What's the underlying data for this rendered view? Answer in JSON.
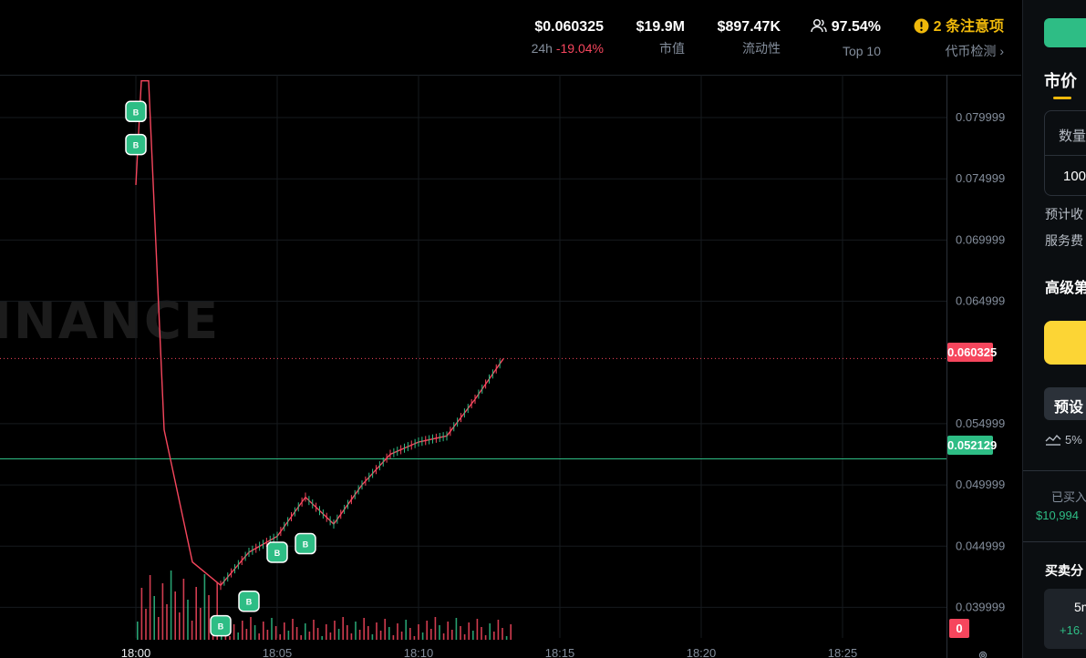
{
  "stats": {
    "price": {
      "value": "$0.060325",
      "prefix": "24h",
      "change": "-19.04%"
    },
    "market_cap": {
      "value": "$19.9M",
      "label": "市值"
    },
    "liquidity": {
      "value": "$897.47K",
      "label": "流动性"
    },
    "holders": {
      "value": "97.54%",
      "label": "Top 10",
      "icon": "users-icon"
    },
    "alerts": {
      "value": "2 条注意项",
      "label": "代币检测 ›",
      "icon": "warning-icon"
    }
  },
  "chart": {
    "watermark": "INANCE",
    "current_price_tag": "0.060325",
    "avg_price_tag": "0.052129",
    "volume_tag": "0",
    "y_ticks": [
      "0.079999",
      "0.074999",
      "0.069999",
      "0.064999",
      "0.054999",
      "0.049999",
      "0.044999",
      "0.039999"
    ],
    "x_ticks": [
      "18:00",
      "18:05",
      "18:10",
      "18:15",
      "18:20",
      "18:25"
    ],
    "buy_marker_label": "B",
    "colors": {
      "up": "#2ebd85",
      "down": "#f6465d",
      "grid": "#161a1e",
      "axis_text": "#848e9c"
    }
  },
  "chart_data": {
    "type": "line",
    "title": "",
    "xlabel": "",
    "ylabel": "",
    "x": [
      "18:00",
      "18:01",
      "18:02",
      "18:03",
      "18:04",
      "18:05",
      "18:06",
      "18:07",
      "18:08",
      "18:09",
      "18:10",
      "18:11",
      "18:12",
      "18:13"
    ],
    "series": [
      {
        "values": [
          0.0745,
          0.0545,
          0.0437,
          0.0418,
          0.0445,
          0.0458,
          0.049,
          0.0468,
          0.05,
          0.0525,
          0.0535,
          0.054,
          0.057,
          0.0603
        ]
      }
    ],
    "ylim": [
      0.0375,
      0.0835
    ],
    "xlim": [
      "17:59",
      "18:26"
    ],
    "reference_lines": {
      "current_price": 0.060325,
      "avg_buy_price": 0.052129
    },
    "buy_markers": [
      {
        "x": "18:00",
        "y": 0.0778
      },
      {
        "x": "18:00",
        "y": 0.0805
      },
      {
        "x": "18:03",
        "y": 0.0385
      },
      {
        "x": "18:04",
        "y": 0.0405
      },
      {
        "x": "18:05",
        "y": 0.0445
      },
      {
        "x": "18:06",
        "y": 0.0452
      }
    ],
    "grid": true
  },
  "panel": {
    "tab_market": "市价",
    "qty_label": "数量",
    "qty_value": "100",
    "est_label": "预计收",
    "fee_label": "服务费",
    "advanced_label": "高级第",
    "preset_label": "预设",
    "slippage": "5%",
    "bought_label": "已买入",
    "bought_value": "$10,994",
    "dist_label": "买卖分",
    "time_label": "5m",
    "time_change": "+16."
  }
}
